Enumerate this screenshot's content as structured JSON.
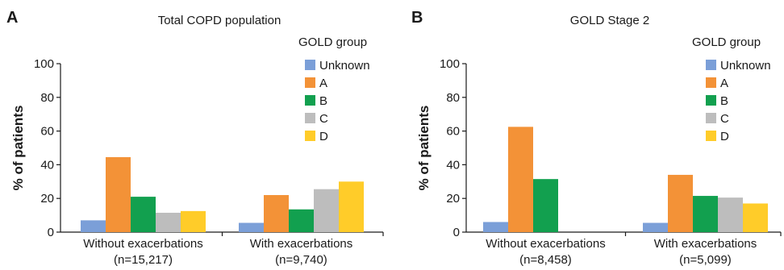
{
  "chart_data": [
    {
      "type": "bar",
      "panel_label": "A",
      "title": "Total COPD population",
      "ylabel": "% of patients",
      "xlabel": "",
      "ylim": [
        0,
        100
      ],
      "yticks": [
        0,
        20,
        40,
        60,
        80,
        100
      ],
      "categories": [
        {
          "label": "Without exacerbations",
          "sublabel": "(n=15,217)"
        },
        {
          "label": "With exacerbations",
          "sublabel": "(n=9,740)"
        }
      ],
      "legend": {
        "title": "GOLD group",
        "placement": "top-right"
      },
      "grid": false,
      "series": [
        {
          "name": "Unknown",
          "color": "#7b9fd8",
          "values": [
            7,
            5.5
          ]
        },
        {
          "name": "A",
          "color": "#f39237",
          "values": [
            44.5,
            22
          ]
        },
        {
          "name": "B",
          "color": "#12a04f",
          "values": [
            21,
            13.5
          ]
        },
        {
          "name": "C",
          "color": "#bdbdbd",
          "values": [
            11.5,
            25.5
          ]
        },
        {
          "name": "D",
          "color": "#ffcc29",
          "values": [
            12.5,
            30
          ]
        }
      ]
    },
    {
      "type": "bar",
      "panel_label": "B",
      "title": "GOLD Stage 2",
      "ylabel": "% of patients",
      "xlabel": "",
      "ylim": [
        0,
        100
      ],
      "yticks": [
        0,
        20,
        40,
        60,
        80,
        100
      ],
      "categories": [
        {
          "label": "Without exacerbations",
          "sublabel": "(n=8,458)"
        },
        {
          "label": "With exacerbations",
          "sublabel": "(n=5,099)"
        }
      ],
      "legend": {
        "title": "GOLD group",
        "placement": "top-right"
      },
      "grid": false,
      "series": [
        {
          "name": "Unknown",
          "color": "#7b9fd8",
          "values": [
            6,
            5.5
          ]
        },
        {
          "name": "A",
          "color": "#f39237",
          "values": [
            62.5,
            34
          ]
        },
        {
          "name": "B",
          "color": "#12a04f",
          "values": [
            31.5,
            21.5
          ]
        },
        {
          "name": "C",
          "color": "#bdbdbd",
          "values": [
            0,
            20.5
          ]
        },
        {
          "name": "D",
          "color": "#ffcc29",
          "values": [
            0,
            17
          ]
        }
      ]
    }
  ]
}
